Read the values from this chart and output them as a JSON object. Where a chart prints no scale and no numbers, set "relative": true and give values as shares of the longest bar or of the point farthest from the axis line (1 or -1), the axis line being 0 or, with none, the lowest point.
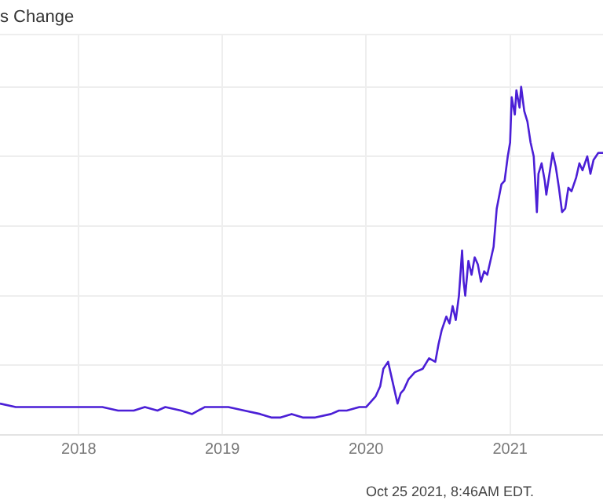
{
  "chart_data": {
    "type": "line",
    "title": "s Change",
    "annotations": [
      "Oct 25 2021, 8:46AM EDT."
    ],
    "relative": true,
    "grid": true,
    "legend": false,
    "marker": "none",
    "line_style": "solid",
    "xlim": [
      "2017-06-15",
      "2021-08-25"
    ],
    "xticks": [
      "2018",
      "2019",
      "2020",
      "2021"
    ],
    "x": [
      "2017-06-15",
      "2017-07-25",
      "2017-09-04",
      "2017-10-14",
      "2017-11-23",
      "2018-01-01",
      "2018-02-10",
      "2018-03-02",
      "2018-04-11",
      "2018-05-21",
      "2018-06-18",
      "2018-07-20",
      "2018-08-09",
      "2018-09-18",
      "2018-10-16",
      "2018-11-17",
      "2018-12-18",
      "2019-01-16",
      "2019-02-26",
      "2019-04-07",
      "2019-05-05",
      "2019-05-29",
      "2019-06-26",
      "2019-07-24",
      "2019-08-25",
      "2019-10-04",
      "2019-10-24",
      "2019-11-13",
      "2019-12-15",
      "2020-01-01",
      "2020-01-25",
      "2020-02-06",
      "2020-02-14",
      "2020-02-26",
      "2020-03-05",
      "2020-03-13",
      "2020-03-21",
      "2020-03-29",
      "2020-04-06",
      "2020-04-18",
      "2020-05-04",
      "2020-05-24",
      "2020-06-09",
      "2020-06-25",
      "2020-07-03",
      "2020-07-11",
      "2020-07-23",
      "2020-07-31",
      "2020-08-08",
      "2020-08-16",
      "2020-08-24",
      "2020-09-01",
      "2020-09-05",
      "2020-09-09",
      "2020-09-17",
      "2020-09-25",
      "2020-10-03",
      "2020-10-11",
      "2020-10-19",
      "2020-10-27",
      "2020-11-04",
      "2020-11-20",
      "2020-11-28",
      "2020-12-10",
      "2020-12-18",
      "2020-12-26",
      "2021-01-01",
      "2021-01-05",
      "2021-01-13",
      "2021-01-17",
      "2021-01-25",
      "2021-01-29",
      "2021-02-06",
      "2021-02-14",
      "2021-02-22",
      "2021-03-02",
      "2021-03-10",
      "2021-03-14",
      "2021-03-22",
      "2021-03-30",
      "2021-04-03",
      "2021-04-11",
      "2021-04-19",
      "2021-04-27",
      "2021-05-05",
      "2021-05-13",
      "2021-05-21",
      "2021-05-29",
      "2021-06-06",
      "2021-06-18",
      "2021-06-26",
      "2021-07-04",
      "2021-07-16",
      "2021-07-24",
      "2021-08-01",
      "2021-08-13",
      "2021-08-25"
    ],
    "series": [
      {
        "color": "#4b1fd6",
        "values": [
          0.09,
          0.08,
          0.08,
          0.08,
          0.08,
          0.08,
          0.08,
          0.08,
          0.07,
          0.07,
          0.08,
          0.07,
          0.08,
          0.07,
          0.06,
          0.08,
          0.08,
          0.08,
          0.07,
          0.06,
          0.05,
          0.05,
          0.06,
          0.05,
          0.05,
          0.06,
          0.07,
          0.07,
          0.08,
          0.08,
          0.11,
          0.14,
          0.19,
          0.21,
          0.17,
          0.13,
          0.09,
          0.12,
          0.13,
          0.16,
          0.18,
          0.19,
          0.22,
          0.21,
          0.26,
          0.3,
          0.34,
          0.32,
          0.37,
          0.33,
          0.4,
          0.53,
          0.44,
          0.4,
          0.5,
          0.46,
          0.51,
          0.49,
          0.44,
          0.47,
          0.46,
          0.54,
          0.65,
          0.72,
          0.73,
          0.8,
          0.84,
          0.97,
          0.92,
          0.99,
          0.94,
          1,
          0.93,
          0.9,
          0.84,
          0.8,
          0.64,
          0.75,
          0.78,
          0.73,
          0.69,
          0.75,
          0.81,
          0.77,
          0.71,
          0.64,
          0.65,
          0.71,
          0.7,
          0.74,
          0.78,
          0.76,
          0.8,
          0.75,
          0.79,
          0.81,
          0.81
        ]
      }
    ]
  }
}
